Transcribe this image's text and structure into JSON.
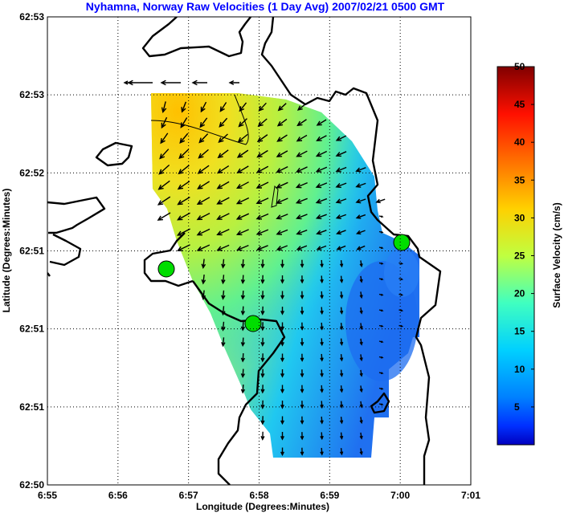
{
  "chart_data": {
    "type": "quiver",
    "title": "Nyhamna, Norway Raw Velocities (1 Day Avg) 2007/02/21 0500 GMT",
    "xlabel": "Longitude (Degrees:Minutes)",
    "ylabel": "Latitude (Degrees:Minutes)",
    "x_tick_labels": [
      "6:55",
      "6:56",
      "6:57",
      "6:58",
      "6:59",
      "7:00",
      "7:01"
    ],
    "y_tick_labels": [
      "62:50",
      "62:51",
      "62:51",
      "62:51",
      "62:52",
      "62:53",
      "62:53"
    ],
    "grid": true,
    "colorbar": {
      "label": "Surface Velocity (cm/s)",
      "ticks": [
        "5",
        "10",
        "15",
        "20",
        "25",
        "30",
        "35",
        "40",
        "45",
        "50"
      ],
      "range": [
        0,
        50
      ],
      "colormap": "jet"
    },
    "stations": [
      {
        "lon": "6:56.7",
        "lat_frac": 0.35
      },
      {
        "lon": "6:57.9",
        "lat_frac": 0.25
      },
      {
        "lon": "7:00.0",
        "lat_frac": 0.4
      }
    ],
    "notes": "Speed field ~20-30 cm/s in northwest, decreasing to ~5-10 cm/s in southeast; arrows point west in the north, south in the center."
  }
}
